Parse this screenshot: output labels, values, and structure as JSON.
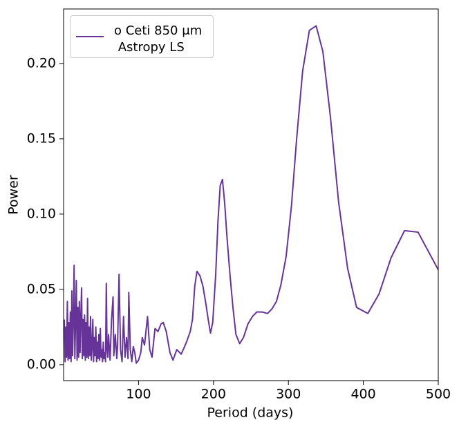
{
  "chart_data": {
    "type": "line",
    "xlabel": "Period (days)",
    "ylabel": "Power",
    "xlim": [
      0,
      500
    ],
    "ylim": [
      -0.0106,
      0.2362
    ],
    "xticks": [
      100,
      200,
      300,
      400,
      500
    ],
    "yticks": [
      {
        "value": 0,
        "label": "0.00"
      },
      0.05,
      {
        "value": 0.1,
        "label": "0.10"
      },
      0.15,
      {
        "value": 0.2,
        "label": "0.20"
      }
    ],
    "legend": "upper left",
    "x": [
      1,
      2,
      3,
      4,
      5,
      6,
      7,
      8,
      9,
      10,
      11,
      12,
      13,
      14,
      15,
      16,
      17,
      18,
      19,
      20,
      21,
      22,
      23,
      24,
      25,
      26,
      27,
      28,
      29,
      30,
      31,
      32,
      33,
      34,
      35,
      36,
      37,
      38,
      39,
      40,
      41,
      42,
      43,
      44,
      45,
      46,
      47,
      48,
      49,
      50,
      51,
      52,
      53,
      54,
      55,
      56,
      57,
      58,
      59,
      60,
      62,
      64,
      66,
      67,
      69,
      71,
      72,
      74,
      76,
      78,
      80,
      82,
      84,
      86,
      87,
      89,
      91,
      93,
      95,
      97,
      100,
      103,
      105,
      108,
      112,
      115,
      118,
      122,
      126,
      130,
      133,
      137,
      142,
      146,
      151,
      157,
      164,
      169,
      172,
      175,
      178,
      182,
      186,
      190,
      193,
      196,
      199,
      203,
      206,
      209,
      212,
      215,
      218,
      222,
      226,
      230,
      235,
      240,
      246,
      252,
      258,
      265,
      272,
      278,
      284,
      290,
      297,
      304,
      311,
      319,
      328,
      337,
      346,
      356,
      367,
      379,
      391,
      406,
      421,
      437,
      455,
      473,
      500
    ],
    "series": [
      {
        "name": "o Ceti 850 μm\n Astropy LS",
        "color": "#663399",
        "values": [
          0.03,
          0.002,
          0.025,
          0.005,
          0.042,
          0.003,
          0.028,
          0.004,
          0.035,
          0.002,
          0.049,
          0.006,
          0.03,
          0.066,
          0.004,
          0.03,
          0.056,
          0.003,
          0.038,
          0.005,
          0.042,
          0.008,
          0.032,
          0.051,
          0.004,
          0.03,
          0.006,
          0.033,
          0.003,
          0.028,
          0.005,
          0.044,
          0.004,
          0.025,
          0.006,
          0.032,
          0.003,
          0.012,
          0.03,
          0.002,
          0.018,
          0.006,
          0.025,
          0.002,
          0.015,
          0.004,
          0.02,
          0.003,
          0.024,
          0.005,
          0.01,
          0.002,
          0.015,
          0.004,
          0.008,
          0.002,
          0.054,
          0.01,
          0.005,
          0.02,
          0.003,
          0.03,
          0.045,
          0.006,
          0.02,
          0.004,
          0.012,
          0.06,
          0.01,
          0.002,
          0.032,
          0.005,
          0.018,
          0.004,
          0.048,
          0.01,
          0.002,
          0.012,
          0.008,
          0.001,
          0.003,
          0.008,
          0.018,
          0.013,
          0.032,
          0.01,
          0.005,
          0.024,
          0.022,
          0.027,
          0.028,
          0.022,
          0.008,
          0.003,
          0.01,
          0.007,
          0.015,
          0.022,
          0.03,
          0.052,
          0.062,
          0.059,
          0.052,
          0.04,
          0.03,
          0.021,
          0.028,
          0.06,
          0.095,
          0.119,
          0.123,
          0.107,
          0.085,
          0.06,
          0.038,
          0.02,
          0.014,
          0.018,
          0.027,
          0.032,
          0.035,
          0.035,
          0.034,
          0.037,
          0.042,
          0.053,
          0.072,
          0.105,
          0.15,
          0.195,
          0.222,
          0.225,
          0.208,
          0.165,
          0.108,
          0.064,
          0.038,
          0.034,
          0.047,
          0.071,
          0.089,
          0.088,
          0.063
        ]
      }
    ]
  }
}
